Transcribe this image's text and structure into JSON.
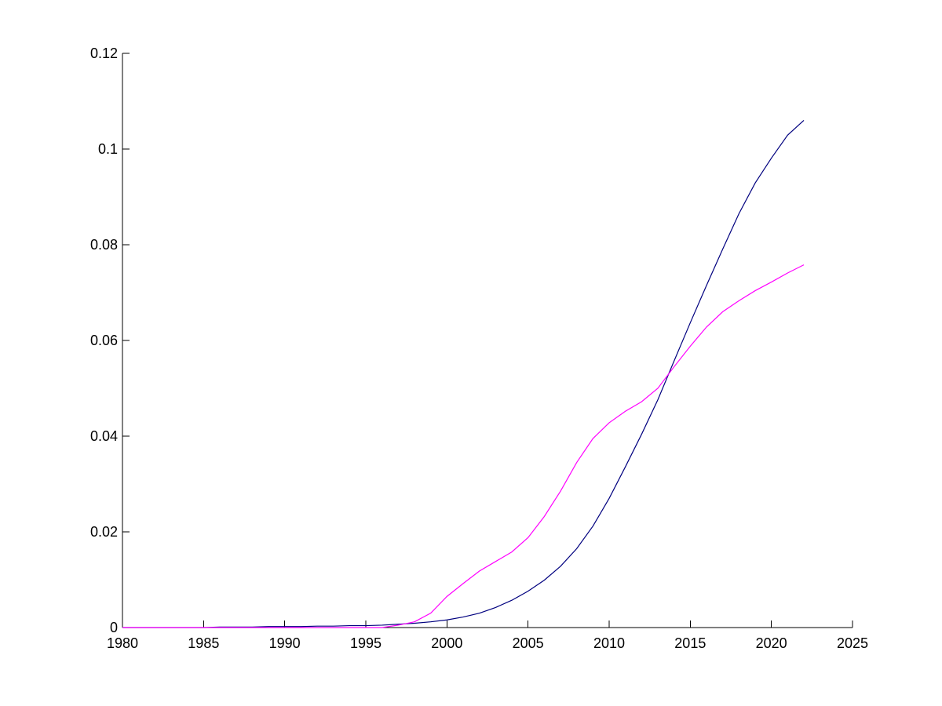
{
  "chart_data": {
    "type": "line",
    "title": "",
    "xlabel": "",
    "ylabel": "",
    "xlim": [
      1980,
      2025
    ],
    "ylim": [
      0,
      0.12
    ],
    "x_ticks": [
      1980,
      1985,
      1990,
      1995,
      2000,
      2005,
      2010,
      2015,
      2020,
      2025
    ],
    "x_tick_labels": [
      "1980",
      "1985",
      "1990",
      "1995",
      "2000",
      "2005",
      "2010",
      "2015",
      "2020",
      "2025"
    ],
    "y_ticks": [
      0,
      0.02,
      0.04,
      0.06,
      0.08,
      0.1,
      0.12
    ],
    "y_tick_labels": [
      "0",
      "0.02",
      "0.04",
      "0.06",
      "0.08",
      "0.1",
      "0.12"
    ],
    "grid": false,
    "legend": "none",
    "x": [
      1980,
      1981,
      1982,
      1983,
      1984,
      1985,
      1986,
      1987,
      1988,
      1989,
      1990,
      1991,
      1992,
      1993,
      1994,
      1995,
      1996,
      1997,
      1998,
      1999,
      2000,
      2001,
      2002,
      2003,
      2004,
      2005,
      2006,
      2007,
      2008,
      2009,
      2010,
      2011,
      2012,
      2013,
      2014,
      2015,
      2016,
      2017,
      2018,
      2019,
      2020,
      2021,
      2022
    ],
    "series": [
      {
        "color": "#00007f",
        "values": [
          0,
          0,
          0,
          0,
          0,
          0,
          0.0001,
          0.0001,
          0.0001,
          0.0002,
          0.0002,
          0.0002,
          0.0003,
          0.0003,
          0.0004,
          0.0004,
          0.0005,
          0.0007,
          0.0009,
          0.0012,
          0.0016,
          0.0022,
          0.003,
          0.0042,
          0.0057,
          0.0076,
          0.0099,
          0.0128,
          0.0165,
          0.0212,
          0.027,
          0.0336,
          0.0404,
          0.0476,
          0.0557,
          0.0637,
          0.0715,
          0.0791,
          0.0865,
          0.0929,
          0.0981,
          0.1029,
          0.106
        ]
      },
      {
        "color": "#ff00ff",
        "values": [
          0,
          0,
          0,
          0,
          0,
          0,
          0,
          0,
          0,
          0,
          0,
          0,
          0,
          0,
          0,
          0,
          0,
          0.0005,
          0.0012,
          0.003,
          0.0065,
          0.0092,
          0.0118,
          0.0138,
          0.0158,
          0.0188,
          0.0232,
          0.0285,
          0.0345,
          0.0395,
          0.0428,
          0.0452,
          0.0472,
          0.05,
          0.0545,
          0.0588,
          0.0628,
          0.066,
          0.0683,
          0.0704,
          0.0722,
          0.0741,
          0.0758
        ]
      }
    ]
  }
}
